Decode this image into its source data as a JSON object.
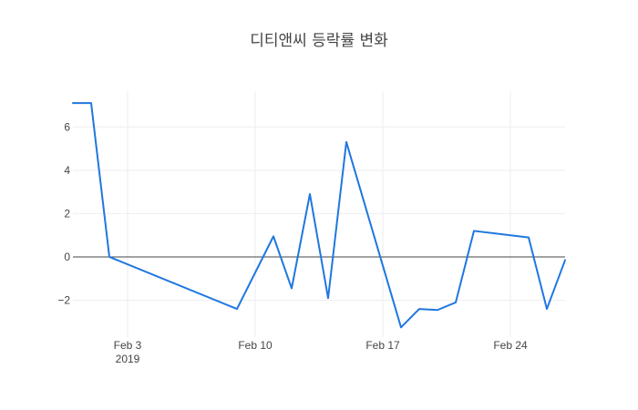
{
  "chart_data": {
    "type": "line",
    "title": "디티앤씨 등락률 변화",
    "xlabel": "",
    "ylabel": "",
    "x": [
      "2019-01-31",
      "2019-02-01",
      "2019-02-02",
      "2019-02-09",
      "2019-02-11",
      "2019-02-12",
      "2019-02-13",
      "2019-02-14",
      "2019-02-15",
      "2019-02-18",
      "2019-02-19",
      "2019-02-20",
      "2019-02-21",
      "2019-02-22",
      "2019-02-25",
      "2019-02-26",
      "2019-02-27"
    ],
    "values": [
      7.1,
      7.1,
      0.0,
      -2.4,
      0.95,
      -1.45,
      2.9,
      -1.9,
      5.3,
      -3.25,
      -2.4,
      -2.45,
      -2.1,
      1.2,
      0.9,
      -2.4,
      -0.15
    ],
    "xlim": [
      "2019-01-31",
      "2019-02-27"
    ],
    "ylim": [
      -3.7,
      7.65
    ],
    "x_ticks": [
      {
        "date": "2019-02-03",
        "label": "Feb 3",
        "sublabel": "2019"
      },
      {
        "date": "2019-02-10",
        "label": "Feb 10",
        "sublabel": ""
      },
      {
        "date": "2019-02-17",
        "label": "Feb 17",
        "sublabel": ""
      },
      {
        "date": "2019-02-24",
        "label": "Feb 24",
        "sublabel": ""
      }
    ],
    "y_ticks": [
      -2,
      0,
      2,
      4,
      6
    ],
    "y_tick_labels": [
      "−2",
      "0",
      "2",
      "4",
      "6"
    ],
    "grid": true,
    "zero_line": true,
    "line_color": "#1f77e0"
  }
}
